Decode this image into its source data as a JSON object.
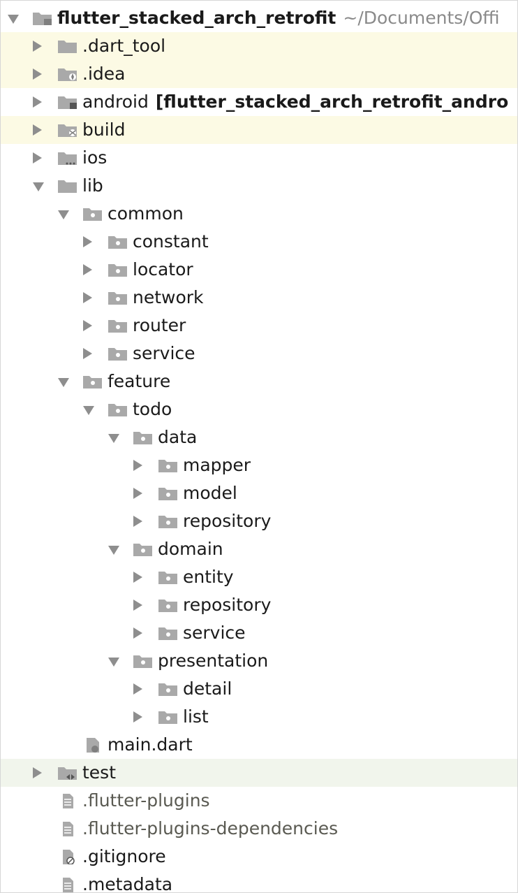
{
  "tree": {
    "rows": [
      {
        "label": "flutter_stacked_arch_retrofit",
        "path": "~/Documents/Offi",
        "level": 0,
        "expanded": true,
        "icon": "project-folder-icon",
        "bold": true,
        "highlight": ""
      },
      {
        "label": ".dart_tool",
        "level": 1,
        "expanded": false,
        "icon": "folder-icon",
        "highlight": "yellow"
      },
      {
        "label": ".idea",
        "level": 1,
        "expanded": false,
        "icon": "idea-folder-icon",
        "highlight": "yellow"
      },
      {
        "label": "android",
        "module": "[flutter_stacked_arch_retrofit_andro",
        "level": 1,
        "expanded": false,
        "icon": "module-folder-icon",
        "highlight": ""
      },
      {
        "label": "build",
        "level": 1,
        "expanded": false,
        "icon": "excluded-folder-icon",
        "highlight": "yellow"
      },
      {
        "label": "ios",
        "level": 1,
        "expanded": false,
        "icon": "ios-folder-icon",
        "highlight": ""
      },
      {
        "label": "lib",
        "level": 1,
        "expanded": true,
        "icon": "source-folder-icon",
        "highlight": ""
      },
      {
        "label": "common",
        "level": 2,
        "expanded": true,
        "icon": "package-folder-icon",
        "highlight": ""
      },
      {
        "label": "constant",
        "level": 3,
        "expanded": false,
        "icon": "package-folder-icon",
        "highlight": ""
      },
      {
        "label": "locator",
        "level": 3,
        "expanded": false,
        "icon": "package-folder-icon",
        "highlight": ""
      },
      {
        "label": "network",
        "level": 3,
        "expanded": false,
        "icon": "package-folder-icon",
        "highlight": ""
      },
      {
        "label": "router",
        "level": 3,
        "expanded": false,
        "icon": "package-folder-icon",
        "highlight": ""
      },
      {
        "label": "service",
        "level": 3,
        "expanded": false,
        "icon": "package-folder-icon",
        "highlight": ""
      },
      {
        "label": "feature",
        "level": 2,
        "expanded": true,
        "icon": "package-folder-icon",
        "highlight": ""
      },
      {
        "label": "todo",
        "level": 3,
        "expanded": true,
        "icon": "package-folder-icon",
        "highlight": ""
      },
      {
        "label": "data",
        "level": 4,
        "expanded": true,
        "icon": "package-folder-icon",
        "highlight": ""
      },
      {
        "label": "mapper",
        "level": 5,
        "expanded": false,
        "icon": "package-folder-icon",
        "highlight": ""
      },
      {
        "label": "model",
        "level": 5,
        "expanded": false,
        "icon": "package-folder-icon",
        "highlight": ""
      },
      {
        "label": "repository",
        "level": 5,
        "expanded": false,
        "icon": "package-folder-icon",
        "highlight": ""
      },
      {
        "label": "domain",
        "level": 4,
        "expanded": true,
        "icon": "package-folder-icon",
        "highlight": ""
      },
      {
        "label": "entity",
        "level": 5,
        "expanded": false,
        "icon": "package-folder-icon",
        "highlight": ""
      },
      {
        "label": "repository",
        "level": 5,
        "expanded": false,
        "icon": "package-folder-icon",
        "highlight": ""
      },
      {
        "label": "service",
        "level": 5,
        "expanded": false,
        "icon": "package-folder-icon",
        "highlight": ""
      },
      {
        "label": "presentation",
        "level": 4,
        "expanded": true,
        "icon": "package-folder-icon",
        "highlight": ""
      },
      {
        "label": "detail",
        "level": 5,
        "expanded": false,
        "icon": "package-folder-icon",
        "highlight": ""
      },
      {
        "label": "list",
        "level": 5,
        "expanded": false,
        "icon": "package-folder-icon",
        "highlight": ""
      },
      {
        "label": "main.dart",
        "level": 2,
        "expanded": null,
        "icon": "dart-file-icon",
        "highlight": ""
      },
      {
        "label": "test",
        "level": 1,
        "expanded": false,
        "icon": "test-folder-icon",
        "highlight": "green"
      },
      {
        "label": ".flutter-plugins",
        "level": 1,
        "expanded": null,
        "icon": "text-file-icon",
        "muted": true,
        "highlight": ""
      },
      {
        "label": ".flutter-plugins-dependencies",
        "level": 1,
        "expanded": null,
        "icon": "text-file-icon",
        "muted": true,
        "highlight": ""
      },
      {
        "label": ".gitignore",
        "level": 1,
        "expanded": null,
        "icon": "ignored-file-icon",
        "highlight": ""
      },
      {
        "label": ".metadata",
        "level": 1,
        "expanded": null,
        "icon": "text-file-icon",
        "highlight": ""
      }
    ]
  },
  "colors": {
    "highlight_yellow": "#fcfae4",
    "highlight_green": "#f1f5ec",
    "folder": "#a9a9a9",
    "arrow": "#8e8e8e",
    "path_text": "#8a8a8a"
  }
}
